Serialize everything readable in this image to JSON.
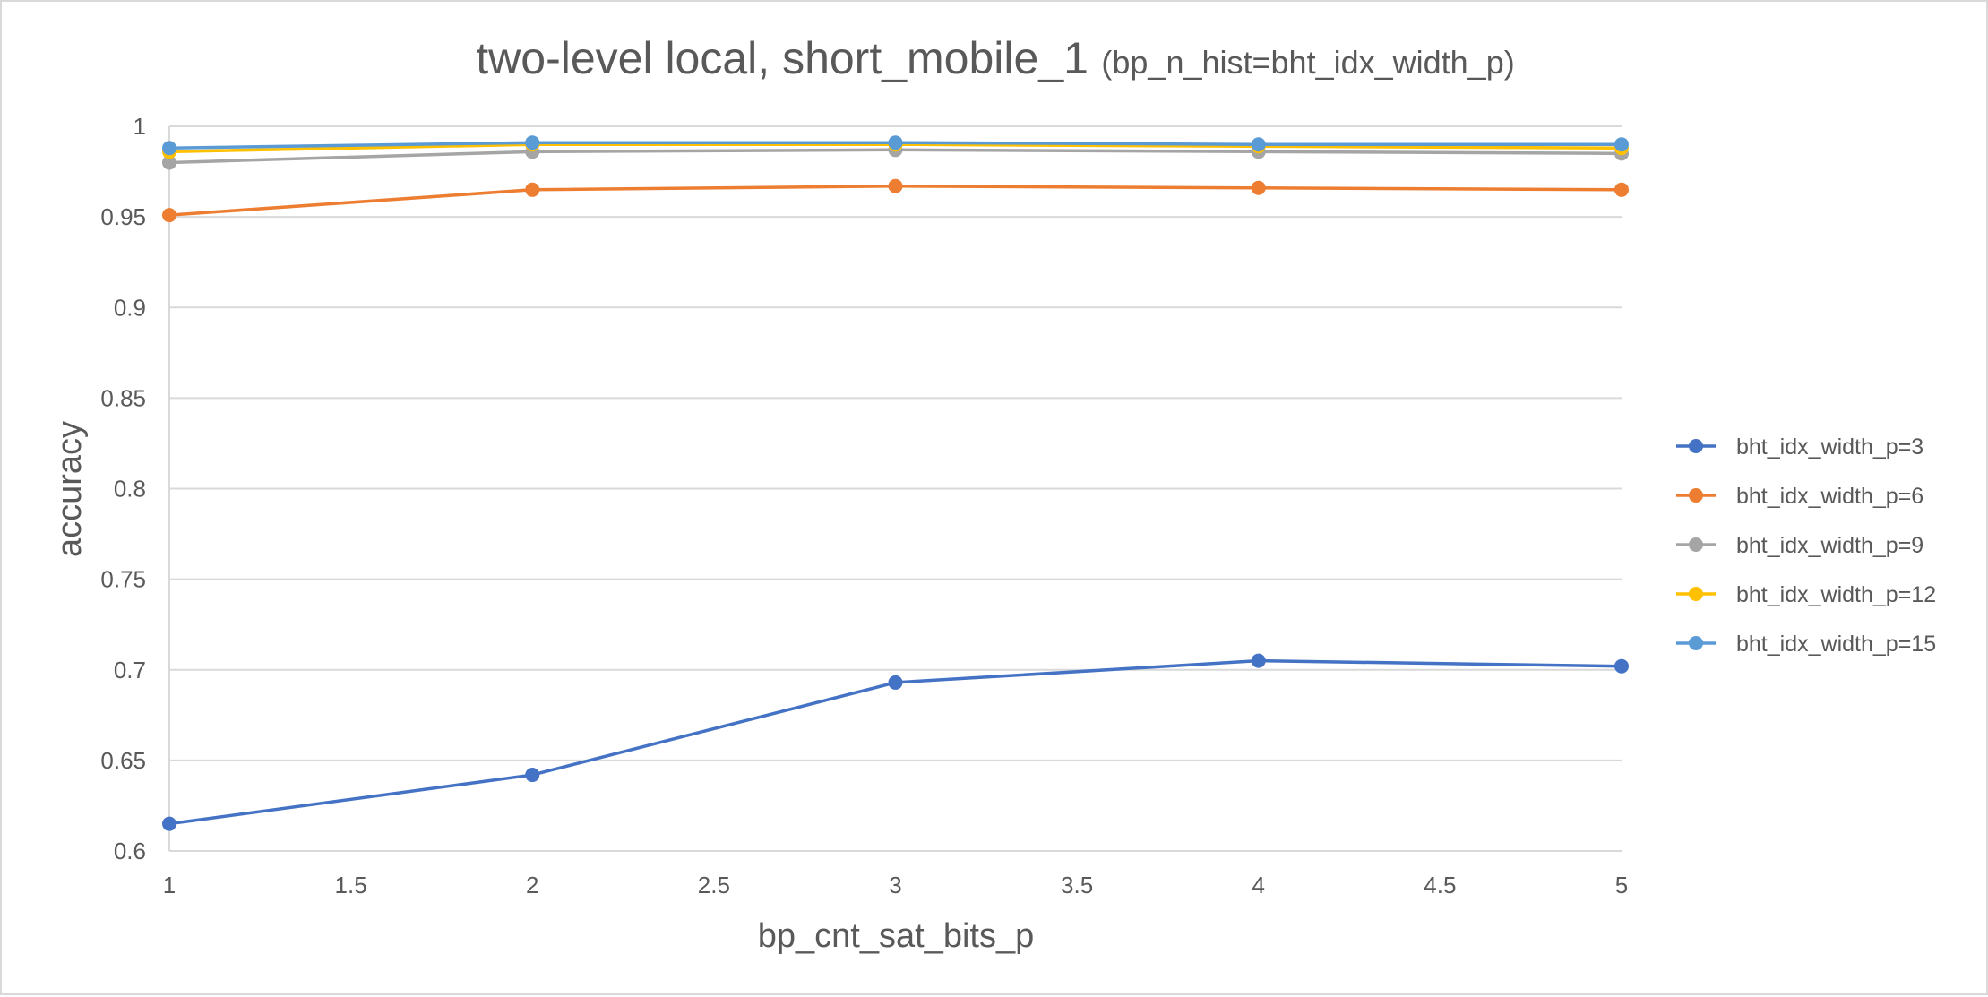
{
  "chart_data": {
    "type": "line",
    "title": "two-level local, short_mobile_1",
    "subtitle": "(bp_n_hist=bht_idx_width_p)",
    "xlabel": "bp_cnt_sat_bits_p",
    "ylabel": "accuracy",
    "x": [
      1,
      2,
      3,
      4,
      5
    ],
    "xlim": [
      1,
      5
    ],
    "ylim": [
      0.6,
      1
    ],
    "x_ticks": [
      "1",
      "1.5",
      "2",
      "2.5",
      "3",
      "3.5",
      "4",
      "4.5",
      "5"
    ],
    "x_tick_values": [
      1,
      1.5,
      2,
      2.5,
      3,
      3.5,
      4,
      4.5,
      5
    ],
    "y_ticks": [
      "0.6",
      "0.65",
      "0.7",
      "0.75",
      "0.8",
      "0.85",
      "0.9",
      "0.95",
      "1"
    ],
    "y_tick_values": [
      0.6,
      0.65,
      0.7,
      0.75,
      0.8,
      0.85,
      0.9,
      0.95,
      1
    ],
    "grid": "horizontal",
    "legend_position": "right",
    "series": [
      {
        "name": "bht_idx_width_p=3",
        "color": "#4472C4",
        "values": [
          0.615,
          0.642,
          0.693,
          0.705,
          0.702
        ]
      },
      {
        "name": "bht_idx_width_p=6",
        "color": "#ED7D31",
        "values": [
          0.951,
          0.965,
          0.967,
          0.966,
          0.965
        ]
      },
      {
        "name": "bht_idx_width_p=9",
        "color": "#A5A5A5",
        "values": [
          0.98,
          0.986,
          0.987,
          0.986,
          0.985
        ]
      },
      {
        "name": "bht_idx_width_p=12",
        "color": "#FFC000",
        "values": [
          0.986,
          0.99,
          0.99,
          0.989,
          0.988
        ]
      },
      {
        "name": "bht_idx_width_p=15",
        "color": "#5B9BD5",
        "values": [
          0.988,
          0.991,
          0.991,
          0.99,
          0.99
        ]
      }
    ]
  }
}
